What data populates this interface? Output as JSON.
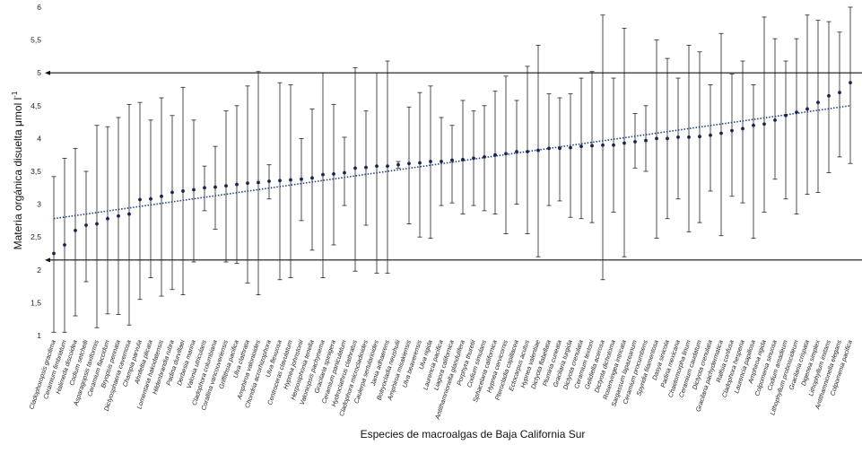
{
  "chart_data": {
    "type": "scatter",
    "title": "",
    "xlabel": "Especies de macroalgas de Baja California Sur",
    "ylabel": "Materia orgánica disuelta μmol l",
    "ylabel_superscript": "-1",
    "ylim": [
      1,
      6
    ],
    "yticks": [
      "1",
      "1,5",
      "2",
      "2,5",
      "3",
      "3,5",
      "4",
      "4,5",
      "5",
      "5,5",
      "6"
    ],
    "reference_lines": [
      2.15,
      5.0
    ],
    "trendline": {
      "style": "dotted",
      "start": 2.78,
      "end": 4.5
    },
    "categories": [
      "Cladophoropsis gracilima",
      "Ceramium fimbriatum",
      "Halimeda discoidea",
      "Codium setchelli",
      "Asparagopsis taxiformis",
      "Ceramium flaccidum",
      "Bryopsis pennata",
      "Dictyosphaeria cavernosa",
      "Champia parvula",
      "Ahnfeltia plicata",
      "Lomentaria hakodatensis",
      "Hildenbrandia rubra",
      "Padina durvillaei",
      "Derbesia marina",
      "Valonia utricularis",
      "Cladophora columbiana",
      "Corallina vancouveriensis",
      "Griffithsia pacifica",
      "Ulva clathrata",
      "Amphiroa valonioides",
      "Chondria acrorhizophora",
      "Ulva flexuosa",
      "Centroceras clavulatum",
      "Hypnea johnstonii",
      "Herposiphonia tenella",
      "Valoniopsis pachynema",
      "Gracilaria spinigera",
      "Ceramium paniculatum",
      "Hydroclathrus clathratus",
      "Cladophora microcladioides",
      "Caulerpa sertularioides",
      "Jania adhaerens",
      "Botryocladia neushulii",
      "Amphiroa misakiensis",
      "Ulva beaverensis",
      "Ulva rigida",
      "Laurencia pacifica",
      "Liagora californica",
      "Antithamnionella glandulifera",
      "Porphyra thuretii",
      "Codium simulans",
      "Sphacelaria californica",
      "Hypnea cervicornis",
      "Pterocladia capillacea",
      "Ectocarpus acutus",
      "Hypnea valentiae",
      "Dictyota flabellata",
      "Plumiria cuneata",
      "Gracilaria turgida",
      "Dictyota crenulata",
      "Ceramium textoni",
      "Gelidiella acerosa",
      "Dictyota dichotoma",
      "Rosenvingea intricata",
      "Sargassum lapazeanum",
      "Ceramium procumbens",
      "Spyridia filamentosa",
      "Dasya sinicola",
      "Padina mexicana",
      "Chaetomorpha linum",
      "Ceramium caudatum",
      "Dictyota crenulata",
      "Gracilaria pachydermatica",
      "Ralfsia confusa",
      "Cladophora hesperia",
      "Laurencia papillosa",
      "Amphiroa rigida",
      "Colpomenia sinuosa",
      "Codium amadeum",
      "Lithophyllum proboscideum",
      "Gracilaria crispata",
      "Digenea simplex",
      "Lithophyllum imitans",
      "Antithamnionella elegans",
      "Colpomenia pacifica"
    ],
    "values": [
      2.25,
      2.38,
      2.6,
      2.68,
      2.7,
      2.78,
      2.82,
      2.85,
      3.07,
      3.08,
      3.12,
      3.18,
      3.2,
      3.22,
      3.25,
      3.26,
      3.28,
      3.3,
      3.32,
      3.33,
      3.35,
      3.36,
      3.37,
      3.38,
      3.4,
      3.45,
      3.46,
      3.48,
      3.55,
      3.56,
      3.58,
      3.58,
      3.6,
      3.62,
      3.63,
      3.65,
      3.65,
      3.67,
      3.68,
      3.7,
      3.72,
      3.75,
      3.77,
      3.8,
      3.8,
      3.82,
      3.85,
      3.85,
      3.86,
      3.88,
      3.89,
      3.9,
      3.9,
      3.93,
      3.95,
      3.97,
      4.0,
      4.0,
      4.02,
      4.02,
      4.03,
      4.05,
      4.08,
      4.12,
      4.15,
      4.2,
      4.22,
      4.28,
      4.35,
      4.4,
      4.45,
      4.55,
      4.65,
      4.7,
      4.85
    ],
    "error_low": [
      1.05,
      1.05,
      1.3,
      1.82,
      1.12,
      1.33,
      1.32,
      1.16,
      1.55,
      1.88,
      1.6,
      1.7,
      1.62,
      2.12,
      2.9,
      2.62,
      2.12,
      2.1,
      1.8,
      1.62,
      3.08,
      1.85,
      1.88,
      2.75,
      2.3,
      1.88,
      2.38,
      2.98,
      1.98,
      2.68,
      1.95,
      1.95,
      3.55,
      2.7,
      2.5,
      2.48,
      2.98,
      3.02,
      2.85,
      2.98,
      2.9,
      2.85,
      2.55,
      3.0,
      2.55,
      2.2,
      2.98,
      3.05,
      2.8,
      2.78,
      2.72,
      1.85,
      2.88,
      2.2,
      3.55,
      3.5,
      2.48,
      2.78,
      3.08,
      2.58,
      2.72,
      3.2,
      2.52,
      3.12,
      3.02,
      2.48,
      2.88,
      3.38,
      3.08,
      2.85,
      3.15,
      3.18,
      3.48,
      3.72,
      3.62
    ],
    "error_high": [
      3.42,
      3.7,
      3.85,
      3.5,
      4.2,
      4.18,
      4.32,
      4.52,
      4.55,
      4.28,
      4.62,
      4.35,
      4.78,
      4.28,
      3.58,
      3.88,
      4.42,
      4.5,
      4.8,
      5.02,
      3.6,
      4.85,
      4.82,
      4.0,
      4.45,
      5.0,
      4.52,
      4.02,
      5.08,
      4.42,
      5.0,
      5.18,
      3.65,
      4.48,
      4.7,
      4.8,
      4.32,
      4.2,
      4.58,
      4.42,
      4.5,
      4.72,
      4.95,
      4.58,
      5.1,
      5.42,
      4.68,
      4.62,
      4.68,
      4.92,
      5.02,
      5.88,
      4.92,
      5.68,
      4.38,
      4.5,
      5.5,
      5.22,
      4.92,
      5.42,
      5.32,
      4.82,
      5.6,
      4.98,
      5.18,
      4.82,
      5.85,
      5.52,
      5.18,
      5.52,
      5.88,
      5.8,
      5.78,
      5.62,
      6.0
    ]
  }
}
